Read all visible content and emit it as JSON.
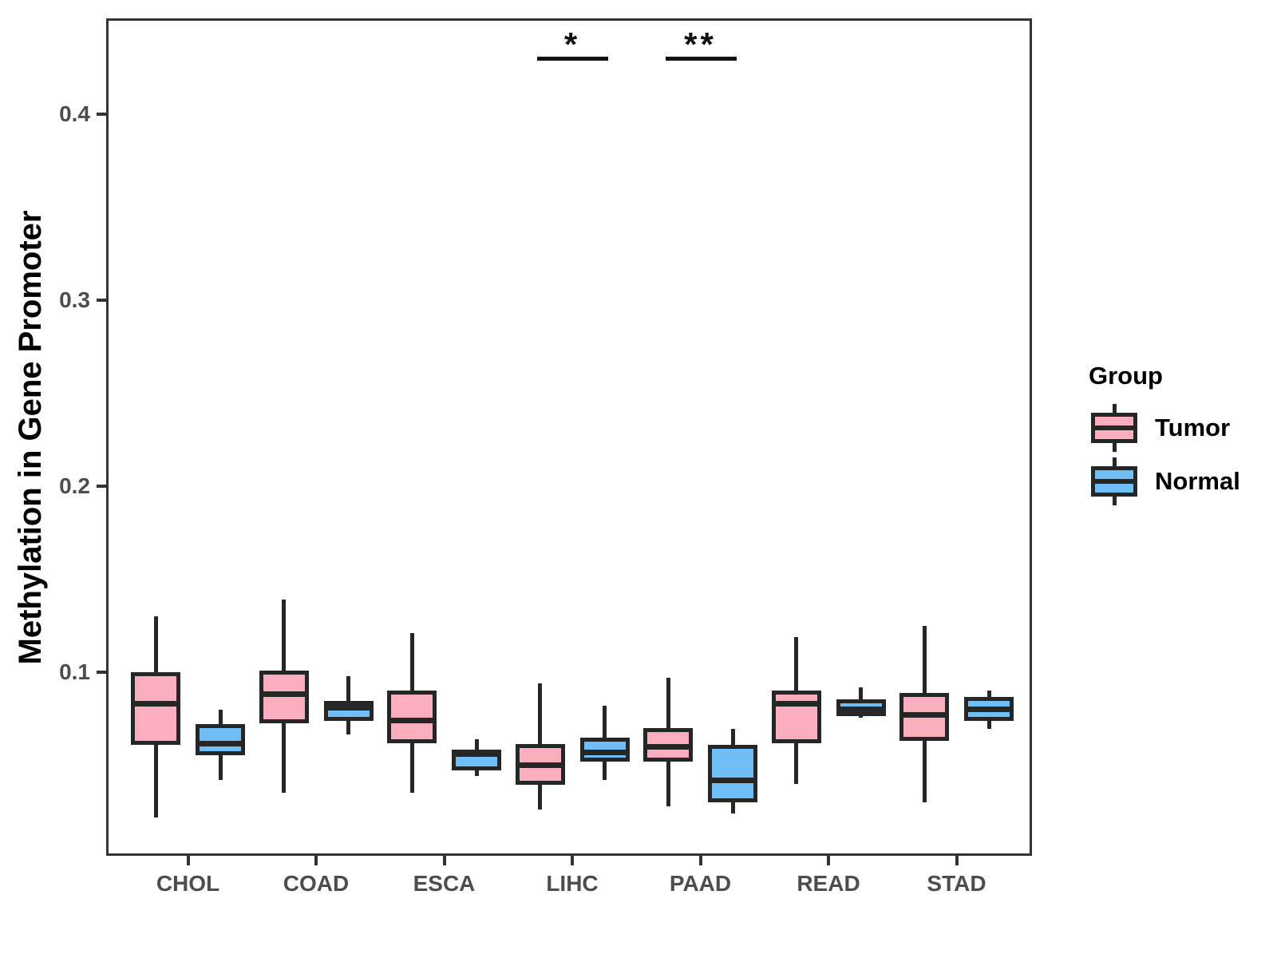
{
  "figure": {
    "y_axis": {
      "title": "Methylation in Gene Promoter",
      "tick_labels": [
        "0.1",
        "0.2",
        "0.3",
        "0.4"
      ]
    },
    "x_axis": {
      "categories": [
        "CHOL",
        "COAD",
        "ESCA",
        "LIHC",
        "PAAD",
        "READ",
        "STAD"
      ]
    },
    "legend": {
      "title": "Group",
      "items": [
        {
          "label": "Tumor",
          "color": "#FBAFBE"
        },
        {
          "label": "Normal",
          "color": "#6FBEF8"
        }
      ]
    }
  },
  "chart_data": {
    "type": "boxplot",
    "title": "",
    "xlabel": "",
    "ylabel": "Methylation in Gene Promoter",
    "ylim": [
      0,
      0.45
    ],
    "y_ticks": [
      0.1,
      0.2,
      0.3,
      0.4
    ],
    "grid": false,
    "legend_position": "right",
    "legend_title": "Group",
    "categories": [
      "CHOL",
      "COAD",
      "ESCA",
      "LIHC",
      "PAAD",
      "READ",
      "STAD"
    ],
    "series": [
      {
        "name": "Tumor",
        "color": "#FBAFBE",
        "boxes": [
          {
            "category": "CHOL",
            "whisker_low": 0.022,
            "q1": 0.061,
            "median": 0.083,
            "q3": 0.1,
            "whisker_high": 0.13
          },
          {
            "category": "COAD",
            "whisker_low": 0.035,
            "q1": 0.0725,
            "median": 0.088,
            "q3": 0.101,
            "whisker_high": 0.139
          },
          {
            "category": "ESCA",
            "whisker_low": 0.035,
            "q1": 0.062,
            "median": 0.074,
            "q3": 0.09,
            "whisker_high": 0.121
          },
          {
            "category": "LIHC",
            "whisker_low": 0.026,
            "q1": 0.0395,
            "median": 0.05,
            "q3": 0.0615,
            "whisker_high": 0.094
          },
          {
            "category": "PAAD",
            "whisker_low": 0.028,
            "q1": 0.052,
            "median": 0.06,
            "q3": 0.07,
            "whisker_high": 0.097
          },
          {
            "category": "READ",
            "whisker_low": 0.04,
            "q1": 0.062,
            "median": 0.083,
            "q3": 0.09,
            "whisker_high": 0.119
          },
          {
            "category": "STAD",
            "whisker_low": 0.03,
            "q1": 0.063,
            "median": 0.077,
            "q3": 0.089,
            "whisker_high": 0.125
          }
        ]
      },
      {
        "name": "Normal",
        "color": "#6FBEF8",
        "boxes": [
          {
            "category": "CHOL",
            "whisker_low": 0.042,
            "q1": 0.0555,
            "median": 0.0615,
            "q3": 0.072,
            "whisker_high": 0.08
          },
          {
            "category": "COAD",
            "whisker_low": 0.0665,
            "q1": 0.074,
            "median": 0.081,
            "q3": 0.0845,
            "whisker_high": 0.098
          },
          {
            "category": "ESCA",
            "whisker_low": 0.044,
            "q1": 0.047,
            "median": 0.056,
            "q3": 0.0585,
            "whisker_high": 0.064
          },
          {
            "category": "LIHC",
            "whisker_low": 0.042,
            "q1": 0.052,
            "median": 0.057,
            "q3": 0.065,
            "whisker_high": 0.082
          },
          {
            "category": "PAAD",
            "whisker_low": 0.024,
            "q1": 0.03,
            "median": 0.042,
            "q3": 0.061,
            "whisker_high": 0.0695
          },
          {
            "category": "READ",
            "whisker_low": 0.0755,
            "q1": 0.0765,
            "median": 0.08,
            "q3": 0.0855,
            "whisker_high": 0.092
          },
          {
            "category": "STAD",
            "whisker_low": 0.0695,
            "q1": 0.074,
            "median": 0.08,
            "q3": 0.0865,
            "whisker_high": 0.09
          }
        ]
      }
    ],
    "annotations": [
      {
        "category": "LIHC",
        "label": "*"
      },
      {
        "category": "PAAD",
        "label": "**"
      }
    ],
    "colors": {
      "tumor_fill": "#FBAFBE",
      "normal_fill": "#6FBEF8",
      "stroke": "#262626",
      "panel_border": "#333333",
      "tick_text": "#4D4D4D",
      "annotation": "#111111"
    }
  }
}
